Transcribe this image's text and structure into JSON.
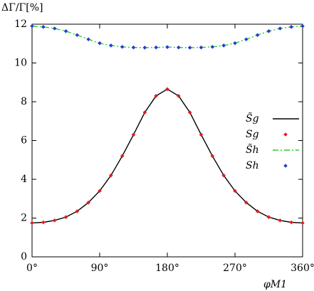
{
  "chart_data": {
    "type": "line",
    "y_label": "ΔΓ/Γ[%]",
    "x_label": "φM1",
    "x": [
      0,
      15,
      30,
      45,
      60,
      75,
      90,
      105,
      120,
      135,
      150,
      165,
      180,
      195,
      210,
      225,
      240,
      255,
      270,
      285,
      300,
      315,
      330,
      345,
      360
    ],
    "xlim": [
      0,
      360
    ],
    "ylim": [
      0,
      12
    ],
    "xticks": [
      {
        "value": 0,
        "label": "0°"
      },
      {
        "value": 90,
        "label": "90°"
      },
      {
        "value": 180,
        "label": "180°"
      },
      {
        "value": 270,
        "label": "270°"
      },
      {
        "value": 360,
        "label": "360°"
      }
    ],
    "yticks": [
      0,
      2,
      4,
      6,
      8,
      10,
      12
    ],
    "series": [
      {
        "name": "S̃g",
        "color": "#000000",
        "mark": "line",
        "linestyle": "solid",
        "values": [
          1.75,
          1.78,
          1.88,
          2.05,
          2.35,
          2.8,
          3.4,
          4.2,
          5.2,
          6.3,
          7.45,
          8.3,
          8.65,
          8.3,
          7.45,
          6.3,
          5.2,
          4.2,
          3.4,
          2.8,
          2.35,
          2.05,
          1.88,
          1.78,
          1.75
        ]
      },
      {
        "name": "Sg",
        "color": "#e41a1c",
        "mark": "points",
        "values": [
          1.75,
          1.78,
          1.88,
          2.05,
          2.35,
          2.8,
          3.4,
          4.2,
          5.2,
          6.3,
          7.45,
          8.3,
          8.65,
          8.3,
          7.45,
          6.3,
          5.2,
          4.2,
          3.4,
          2.8,
          2.35,
          2.05,
          1.88,
          1.78,
          1.75
        ]
      },
      {
        "name": "S̃h",
        "color": "#33cc33",
        "mark": "line",
        "linestyle": "dash-dot",
        "values": [
          11.9,
          11.86,
          11.78,
          11.64,
          11.44,
          11.22,
          11.02,
          10.9,
          10.83,
          10.8,
          10.79,
          10.8,
          10.82,
          10.8,
          10.79,
          10.8,
          10.83,
          10.9,
          11.02,
          11.22,
          11.44,
          11.64,
          11.78,
          11.86,
          11.9
        ]
      },
      {
        "name": "Sh",
        "color": "#1f3fd6",
        "mark": "points",
        "values": [
          11.9,
          11.86,
          11.78,
          11.64,
          11.44,
          11.22,
          11.02,
          10.9,
          10.83,
          10.8,
          10.79,
          10.8,
          10.82,
          10.8,
          10.79,
          10.8,
          10.83,
          10.9,
          11.02,
          11.22,
          11.44,
          11.64,
          11.78,
          11.86,
          11.9
        ]
      }
    ]
  }
}
